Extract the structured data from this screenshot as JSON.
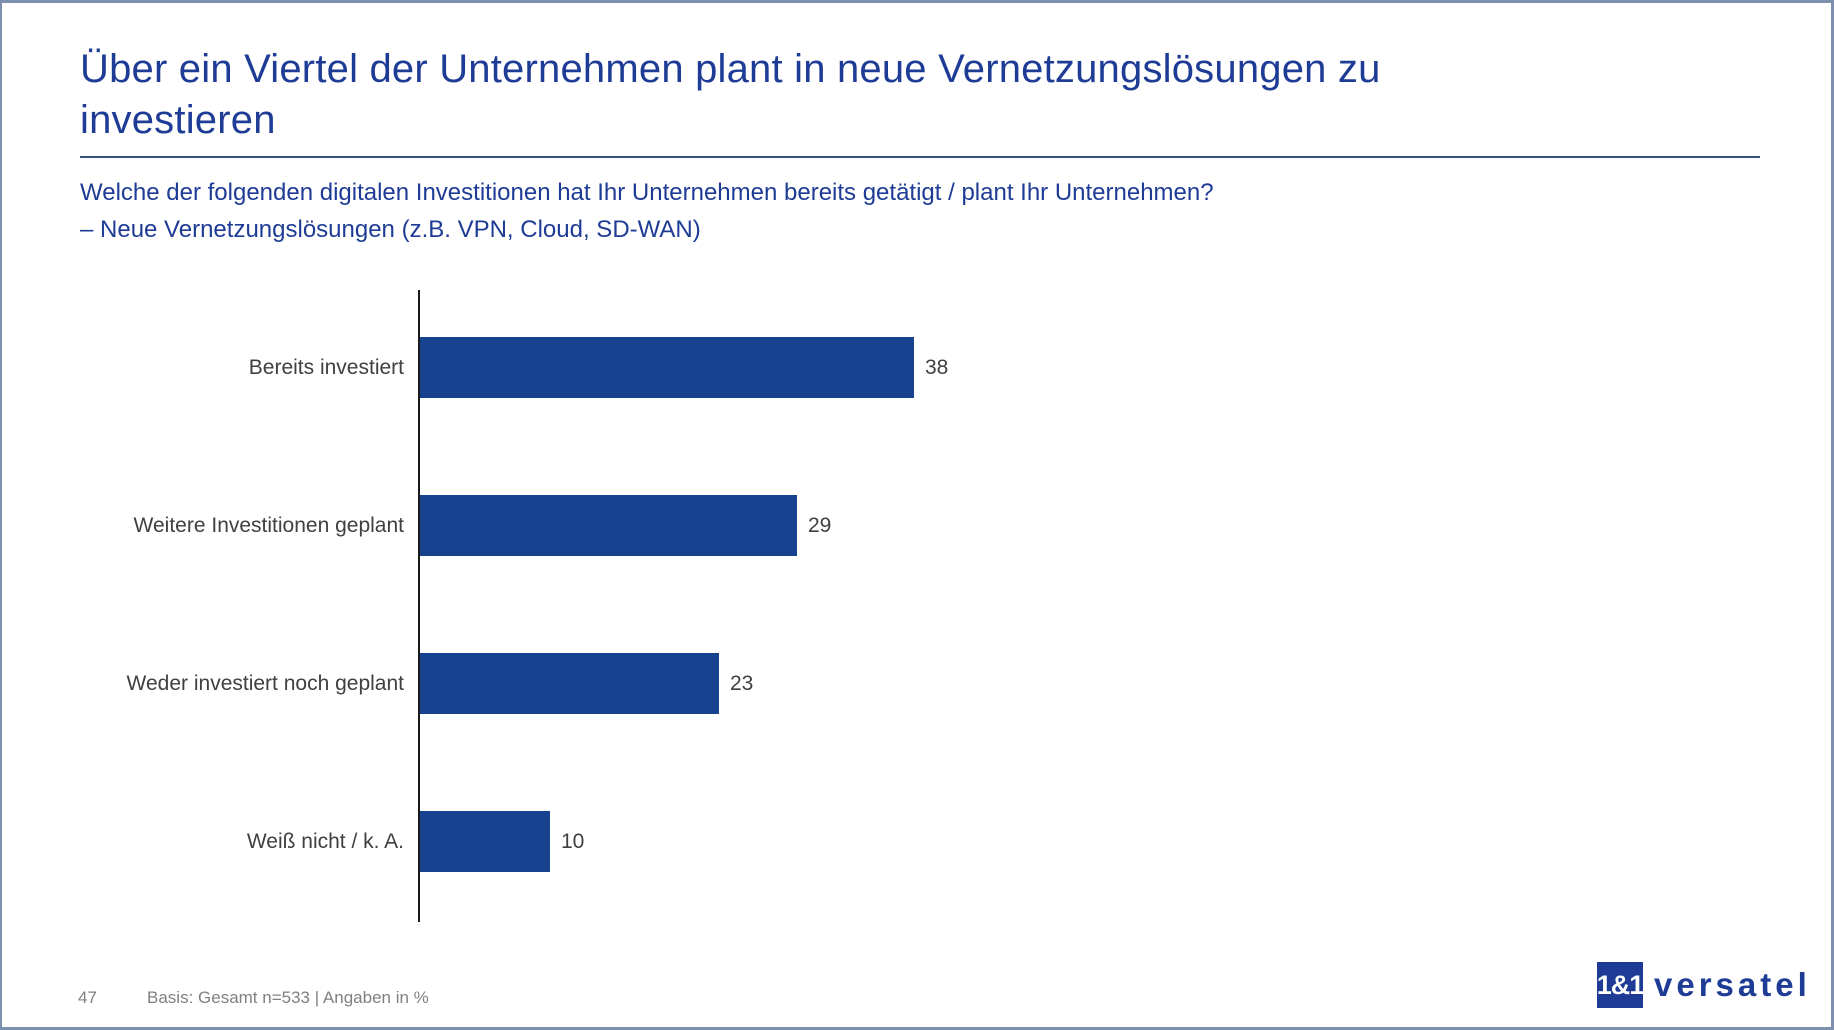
{
  "page": {
    "title": "Über ein Viertel der Unternehmen plant in neue Vernetzungslösungen zu investieren",
    "subtitle_line1": "Welche der folgenden digitalen Investitionen hat Ihr Unternehmen bereits getätigt / plant Ihr Unternehmen?",
    "subtitle_line2": "– Neue Vernetzungslösungen (z.B. VPN, Cloud, SD-WAN)"
  },
  "footer": {
    "page_number": "47",
    "basis_note": "Basis: Gesamt n=533 | Angaben in %"
  },
  "logo": {
    "box_text": "1&1",
    "wordmark": "versatel"
  },
  "colors": {
    "brand_blue": "#1e3c96",
    "bar_blue": "#17428f",
    "text_gray": "#404040",
    "footer_gray": "#808080",
    "frame_blue_gray": "#7d90ad",
    "rule_navy": "#33507f"
  },
  "chart_data": {
    "type": "bar",
    "orientation": "horizontal",
    "categories": [
      "Bereits investiert",
      "Weitere Investitionen geplant",
      "Weder investiert noch geplant",
      "Weiß nicht / k. A."
    ],
    "values": [
      38,
      29,
      23,
      10
    ],
    "title": "",
    "xlabel": "",
    "ylabel": "",
    "unit": "percent",
    "xlim": [
      0,
      45
    ],
    "grid": false,
    "data_labels": true,
    "legend": "none",
    "axis_line": "left-vertical-only"
  }
}
